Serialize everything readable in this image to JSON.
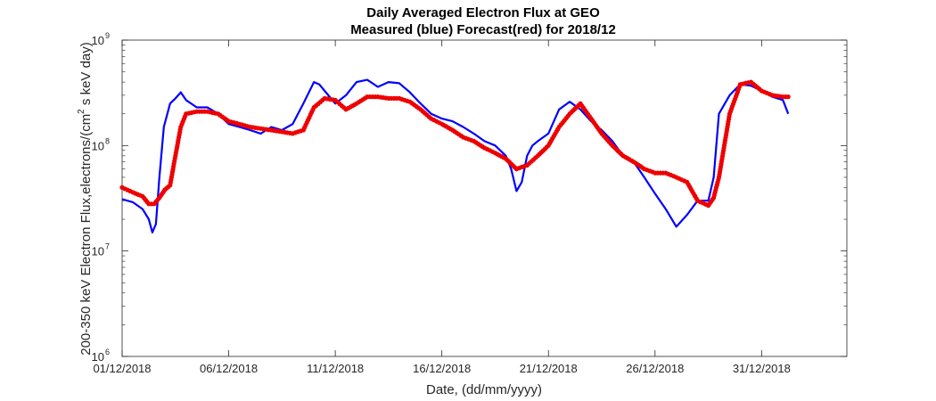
{
  "chart_data": {
    "type": "line",
    "title": "Daily Averaged Electron Flux at GEO",
    "subtitle": "Measured (blue) Forecast(red) for 2018/12",
    "xlabel": "Date, (dd/mm/yyyy)",
    "ylabel_parts": {
      "main": "200-350 keV Electron Flux,electrons/(cm",
      "sup": "2",
      "tail": " s keV day)"
    },
    "y_scale": "log",
    "ylim": [
      1000000,
      1000000000
    ],
    "y_ticks": [
      {
        "value": 1000000,
        "base": "10",
        "exp": "6"
      },
      {
        "value": 10000000,
        "base": "10",
        "exp": "7"
      },
      {
        "value": 100000000,
        "base": "10",
        "exp": "8"
      },
      {
        "value": 1000000000,
        "base": "10",
        "exp": "9"
      }
    ],
    "xlim": [
      "2018-12-01",
      "2019-01-04"
    ],
    "x_ticks": [
      {
        "date": "2018-12-01",
        "label": "01/12/2018"
      },
      {
        "date": "2018-12-06",
        "label": "06/12/2018"
      },
      {
        "date": "2018-12-11",
        "label": "11/12/2018"
      },
      {
        "date": "2018-12-16",
        "label": "16/12/2018"
      },
      {
        "date": "2018-12-21",
        "label": "21/12/2018"
      },
      {
        "date": "2018-12-26",
        "label": "26/12/2018"
      },
      {
        "date": "2018-12-31",
        "label": "31/12/2018"
      }
    ],
    "grid": false,
    "series": [
      {
        "color": "#0000ff",
        "style": "line",
        "points": [
          [
            "2018-12-01T00:00",
            31000000
          ],
          [
            "2018-12-01T12:00",
            29000000
          ],
          [
            "2018-12-01T23:00",
            25000000
          ],
          [
            "2018-12-02T06:00",
            20000000
          ],
          [
            "2018-12-02T10:00",
            15000000
          ],
          [
            "2018-12-02T14:00",
            18000000
          ],
          [
            "2018-12-02T18:00",
            50000000
          ],
          [
            "2018-12-02T23:00",
            150000000
          ],
          [
            "2018-12-03T06:00",
            250000000
          ],
          [
            "2018-12-03T12:00",
            280000000
          ],
          [
            "2018-12-03T18:00",
            320000000
          ],
          [
            "2018-12-04T00:00",
            270000000
          ],
          [
            "2018-12-04T12:00",
            230000000
          ],
          [
            "2018-12-05T00:00",
            230000000
          ],
          [
            "2018-12-05T12:00",
            200000000
          ],
          [
            "2018-12-06T00:00",
            160000000
          ],
          [
            "2018-12-06T12:00",
            150000000
          ],
          [
            "2018-12-07T00:00",
            140000000
          ],
          [
            "2018-12-07T12:00",
            130000000
          ],
          [
            "2018-12-08T00:00",
            150000000
          ],
          [
            "2018-12-08T12:00",
            140000000
          ],
          [
            "2018-12-09T00:00",
            160000000
          ],
          [
            "2018-12-09T12:00",
            250000000
          ],
          [
            "2018-12-10T00:00",
            400000000
          ],
          [
            "2018-12-10T06:00",
            380000000
          ],
          [
            "2018-12-10T12:00",
            330000000
          ],
          [
            "2018-12-11T00:00",
            250000000
          ],
          [
            "2018-12-11T12:00",
            300000000
          ],
          [
            "2018-12-12T00:00",
            400000000
          ],
          [
            "2018-12-12T12:00",
            420000000
          ],
          [
            "2018-12-13T00:00",
            360000000
          ],
          [
            "2018-12-13T12:00",
            400000000
          ],
          [
            "2018-12-14T00:00",
            390000000
          ],
          [
            "2018-12-14T12:00",
            320000000
          ],
          [
            "2018-12-15T00:00",
            250000000
          ],
          [
            "2018-12-15T12:00",
            200000000
          ],
          [
            "2018-12-16T00:00",
            180000000
          ],
          [
            "2018-12-16T12:00",
            170000000
          ],
          [
            "2018-12-17T00:00",
            150000000
          ],
          [
            "2018-12-17T12:00",
            130000000
          ],
          [
            "2018-12-18T00:00",
            110000000
          ],
          [
            "2018-12-18T12:00",
            100000000
          ],
          [
            "2018-12-19T00:00",
            80000000
          ],
          [
            "2018-12-19T06:00",
            60000000
          ],
          [
            "2018-12-19T12:00",
            37000000
          ],
          [
            "2018-12-19T18:00",
            45000000
          ],
          [
            "2018-12-20T00:00",
            80000000
          ],
          [
            "2018-12-20T06:00",
            100000000
          ],
          [
            "2018-12-20T12:00",
            110000000
          ],
          [
            "2018-12-21T00:00",
            130000000
          ],
          [
            "2018-12-21T12:00",
            220000000
          ],
          [
            "2018-12-22T00:00",
            260000000
          ],
          [
            "2018-12-22T12:00",
            220000000
          ],
          [
            "2018-12-23T00:00",
            170000000
          ],
          [
            "2018-12-23T12:00",
            140000000
          ],
          [
            "2018-12-24T00:00",
            110000000
          ],
          [
            "2018-12-24T12:00",
            80000000
          ],
          [
            "2018-12-25T00:00",
            70000000
          ],
          [
            "2018-12-25T12:00",
            50000000
          ],
          [
            "2018-12-26T00:00",
            35000000
          ],
          [
            "2018-12-26T12:00",
            25000000
          ],
          [
            "2018-12-27T00:00",
            17000000
          ],
          [
            "2018-12-27T12:00",
            22000000
          ],
          [
            "2018-12-28T00:00",
            30000000
          ],
          [
            "2018-12-28T12:00",
            30000000
          ],
          [
            "2018-12-28T18:00",
            50000000
          ],
          [
            "2018-12-29T00:00",
            200000000
          ],
          [
            "2018-12-29T12:00",
            300000000
          ],
          [
            "2018-12-30T00:00",
            380000000
          ],
          [
            "2018-12-30T12:00",
            370000000
          ],
          [
            "2018-12-31T00:00",
            330000000
          ],
          [
            "2018-12-31T12:00",
            290000000
          ],
          [
            "2019-01-01T00:00",
            270000000
          ],
          [
            "2019-01-01T06:00",
            200000000
          ]
        ]
      },
      {
        "color": "#ee0000",
        "style": "markers",
        "points": [
          [
            "2018-12-01T00:00",
            40000000
          ],
          [
            "2018-12-01T12:00",
            36000000
          ],
          [
            "2018-12-01T23:00",
            33000000
          ],
          [
            "2018-12-02T06:00",
            28000000
          ],
          [
            "2018-12-02T12:00",
            28000000
          ],
          [
            "2018-12-02T18:00",
            32000000
          ],
          [
            "2018-12-03T00:00",
            38000000
          ],
          [
            "2018-12-03T06:00",
            42000000
          ],
          [
            "2018-12-03T12:00",
            80000000
          ],
          [
            "2018-12-03T18:00",
            150000000
          ],
          [
            "2018-12-04T00:00",
            200000000
          ],
          [
            "2018-12-04T12:00",
            210000000
          ],
          [
            "2018-12-05T00:00",
            210000000
          ],
          [
            "2018-12-05T12:00",
            200000000
          ],
          [
            "2018-12-06T00:00",
            170000000
          ],
          [
            "2018-12-06T12:00",
            160000000
          ],
          [
            "2018-12-07T00:00",
            150000000
          ],
          [
            "2018-12-07T12:00",
            145000000
          ],
          [
            "2018-12-08T00:00",
            140000000
          ],
          [
            "2018-12-08T12:00",
            135000000
          ],
          [
            "2018-12-09T00:00",
            130000000
          ],
          [
            "2018-12-09T12:00",
            140000000
          ],
          [
            "2018-12-10T00:00",
            230000000
          ],
          [
            "2018-12-10T12:00",
            280000000
          ],
          [
            "2018-12-11T00:00",
            270000000
          ],
          [
            "2018-12-11T12:00",
            220000000
          ],
          [
            "2018-12-12T00:00",
            250000000
          ],
          [
            "2018-12-12T12:00",
            290000000
          ],
          [
            "2018-12-13T00:00",
            290000000
          ],
          [
            "2018-12-13T12:00",
            280000000
          ],
          [
            "2018-12-14T00:00",
            280000000
          ],
          [
            "2018-12-14T12:00",
            260000000
          ],
          [
            "2018-12-15T00:00",
            220000000
          ],
          [
            "2018-12-15T12:00",
            180000000
          ],
          [
            "2018-12-16T00:00",
            160000000
          ],
          [
            "2018-12-16T12:00",
            140000000
          ],
          [
            "2018-12-17T00:00",
            120000000
          ],
          [
            "2018-12-17T12:00",
            110000000
          ],
          [
            "2018-12-18T00:00",
            95000000
          ],
          [
            "2018-12-18T12:00",
            85000000
          ],
          [
            "2018-12-19T00:00",
            75000000
          ],
          [
            "2018-12-19T12:00",
            60000000
          ],
          [
            "2018-12-20T00:00",
            65000000
          ],
          [
            "2018-12-20T12:00",
            80000000
          ],
          [
            "2018-12-21T00:00",
            100000000
          ],
          [
            "2018-12-21T12:00",
            150000000
          ],
          [
            "2018-12-22T00:00",
            200000000
          ],
          [
            "2018-12-22T12:00",
            250000000
          ],
          [
            "2018-12-23T00:00",
            180000000
          ],
          [
            "2018-12-23T12:00",
            130000000
          ],
          [
            "2018-12-24T00:00",
            100000000
          ],
          [
            "2018-12-24T12:00",
            80000000
          ],
          [
            "2018-12-25T00:00",
            70000000
          ],
          [
            "2018-12-25T12:00",
            60000000
          ],
          [
            "2018-12-26T00:00",
            55000000
          ],
          [
            "2018-12-26T12:00",
            55000000
          ],
          [
            "2018-12-27T00:00",
            50000000
          ],
          [
            "2018-12-27T12:00",
            45000000
          ],
          [
            "2018-12-28T00:00",
            30000000
          ],
          [
            "2018-12-28T12:00",
            27000000
          ],
          [
            "2018-12-28T18:00",
            32000000
          ],
          [
            "2018-12-29T00:00",
            50000000
          ],
          [
            "2018-12-29T06:00",
            100000000
          ],
          [
            "2018-12-29T12:00",
            200000000
          ],
          [
            "2018-12-30T00:00",
            380000000
          ],
          [
            "2018-12-30T12:00",
            400000000
          ],
          [
            "2018-12-31T00:00",
            330000000
          ],
          [
            "2018-12-31T12:00",
            300000000
          ],
          [
            "2019-01-01T00:00",
            290000000
          ],
          [
            "2019-01-01T06:00",
            290000000
          ]
        ]
      }
    ]
  }
}
